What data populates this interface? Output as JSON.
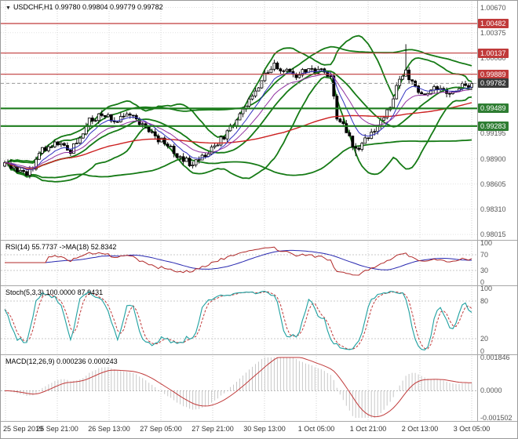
{
  "header": {
    "icon": "▼",
    "symbol_line": "USDCHF,H1  0.99780 0.99804 0.99779 0.99782"
  },
  "time_axis": {
    "labels": [
      "25 Sep 2019",
      "25 Sep 21:00",
      "26 Sep 13:00",
      "27 Sep 05:00",
      "27 Sep 21:00",
      "30 Sep 13:00",
      "1 Oct 05:00",
      "1 Oct 21:00",
      "2 Oct 13:00",
      "3 Oct 05:00"
    ]
  },
  "chart_data": [
    {
      "id": "main",
      "type": "candlestick",
      "title": "USDCHF,H1",
      "ohlc_display": {
        "open": "0.99780",
        "high": "0.99804",
        "low": "0.99779",
        "close": "0.99782"
      },
      "bars": 150,
      "y_range": [
        0.9797,
        1.0073
      ],
      "seed": 5,
      "noise": 0.00038,
      "wick_extra": 0.00045,
      "price_waypoints": [
        [
          0,
          0.9884
        ],
        [
          4,
          0.9878
        ],
        [
          7,
          0.9871
        ],
        [
          9,
          0.988
        ],
        [
          12,
          0.9902
        ],
        [
          17,
          0.9908
        ],
        [
          21,
          0.99
        ],
        [
          24,
          0.9916
        ],
        [
          27,
          0.9934
        ],
        [
          31,
          0.9942
        ],
        [
          35,
          0.9934
        ],
        [
          40,
          0.9941
        ],
        [
          44,
          0.993
        ],
        [
          48,
          0.9916
        ],
        [
          52,
          0.9906
        ],
        [
          56,
          0.989
        ],
        [
          60,
          0.9884
        ],
        [
          64,
          0.9896
        ],
        [
          68,
          0.9908
        ],
        [
          71,
          0.9921
        ],
        [
          75,
          0.994
        ],
        [
          79,
          0.9962
        ],
        [
          83,
          0.999
        ],
        [
          86,
          1.0
        ],
        [
          89,
          0.9994
        ],
        [
          93,
          0.9988
        ],
        [
          97,
          0.9994
        ],
        [
          101,
          0.9992
        ],
        [
          104,
          0.9988
        ],
        [
          106,
          0.994
        ],
        [
          109,
          0.9922
        ],
        [
          112,
          0.99
        ],
        [
          116,
          0.9916
        ],
        [
          120,
          0.9934
        ],
        [
          123,
          0.9952
        ],
        [
          126,
          0.9982
        ],
        [
          128,
          0.9992
        ],
        [
          131,
          0.9974
        ],
        [
          134,
          0.9966
        ],
        [
          137,
          0.9971
        ],
        [
          141,
          0.9968
        ],
        [
          145,
          0.9974
        ],
        [
          149,
          0.99782
        ]
      ],
      "wick_spikes": [
        {
          "i": 128,
          "high": 1.0024
        },
        {
          "i": 86,
          "high": 1.0006
        },
        {
          "i": 112,
          "low": 0.9893
        }
      ],
      "levels": [
        {
          "price": 1.00482,
          "label": "1.00482",
          "color": "#c03a3a",
          "width": 1.2,
          "badge": "#c03a3a"
        },
        {
          "price": 1.00137,
          "label": "1.00137",
          "color": "#c03a3a",
          "width": 1.2,
          "badge": "#c03a3a"
        },
        {
          "price": 0.99889,
          "label": "0.99889",
          "color": "#c03a3a",
          "width": 1.2,
          "badge": "#c03a3a"
        },
        {
          "price": 0.99489,
          "label": "0.99489",
          "color": "#1e7d1e",
          "width": 2.2,
          "badge": "#2e7d32"
        },
        {
          "price": 0.99283,
          "label": "0.99283",
          "color": "#1e7d1e",
          "width": 2.2,
          "badge": "#2e7d32"
        }
      ],
      "current_price": {
        "price": 0.99782,
        "label": "0.99782",
        "badge": "#3a3a3a",
        "line_color": "#999999"
      },
      "grid": {
        "top_price": 1.0067,
        "step": 0.00295
      },
      "axis_labels": [
        {
          "text": "1.00670",
          "price": 1.0067
        },
        {
          "text": "1.00375",
          "price": 1.00375
        },
        {
          "text": "1.00080",
          "price": 1.0008
        },
        {
          "text": "0.99195",
          "price": 0.99195
        },
        {
          "text": "0.98900",
          "price": 0.989
        },
        {
          "text": "0.98605",
          "price": 0.98605
        },
        {
          "text": "0.98310",
          "price": 0.9831
        },
        {
          "text": "0.98015",
          "price": 0.98015
        }
      ],
      "overlays": [
        {
          "kind": "bollinger",
          "period": 20,
          "dev": 2,
          "color": "#157a15",
          "width": 1.8
        },
        {
          "kind": "bollinger",
          "period": 48,
          "dev": 1.6,
          "color": "#157a15",
          "width": 1.8
        },
        {
          "kind": "sma",
          "period": 20,
          "color": "#157a15",
          "width": 1.8
        },
        {
          "kind": "sma",
          "period": 90,
          "color": "#cc2020",
          "width": 1.4
        },
        {
          "kind": "ema",
          "period": 8,
          "color": "#3030c0",
          "width": 1
        },
        {
          "kind": "ema",
          "period": 16,
          "color": "#9030a0",
          "width": 1
        }
      ],
      "candle_colors": {
        "outline": "#000000",
        "bull_fill": "#ffffff",
        "bear_fill": "#000000"
      }
    },
    {
      "id": "rsi",
      "type": "line",
      "label": "RSI(14) 55.7737  ->MA(18) 52.8342",
      "params": {
        "period": 14,
        "ma_period": 18
      },
      "values_display": [
        "55.7737",
        "52.8342"
      ],
      "y_range": [
        0,
        100
      ],
      "grid_levels": [
        30,
        70
      ],
      "axis_labels": [
        {
          "text": "100",
          "value": 100
        },
        {
          "text": "70",
          "value": 70
        },
        {
          "text": "30",
          "value": 30
        },
        {
          "text": "0",
          "value": 0
        }
      ],
      "colors": {
        "main": "#b02828",
        "ma": "#2828b0"
      }
    },
    {
      "id": "stoch",
      "type": "line",
      "label": "Stoch(5,3,3) 100.0000 87.9431",
      "params": {
        "k": 5,
        "d": 3,
        "slowing": 3
      },
      "values_display": [
        "100.0000",
        "87.9431"
      ],
      "y_range": [
        0,
        100
      ],
      "grid_levels": [
        20,
        80
      ],
      "axis_labels": [
        {
          "text": "100",
          "value": 100
        },
        {
          "text": "80",
          "value": 80
        },
        {
          "text": "20",
          "value": 20
        },
        {
          "text": "0",
          "value": 0
        }
      ],
      "colors": {
        "main": "#1ea0a0",
        "signal": "#c03a3a"
      }
    },
    {
      "id": "macd",
      "type": "line",
      "label": "MACD(12,26,9) 0.000236 0.000243",
      "params": {
        "fast": 12,
        "slow": 26,
        "signal": 9
      },
      "values_display": [
        "0.000236",
        "0.000243"
      ],
      "y_range": [
        -0.001502,
        0.001846
      ],
      "grid_levels": [
        0
      ],
      "axis_labels": [
        {
          "text": "0.001846",
          "value": 0.001846
        },
        {
          "text": "0.0000",
          "value": 0
        },
        {
          "text": "-0.001502",
          "value": -0.001502
        }
      ],
      "colors": {
        "histogram": "#c8c8c8",
        "signal": "#c03a3a"
      }
    }
  ]
}
